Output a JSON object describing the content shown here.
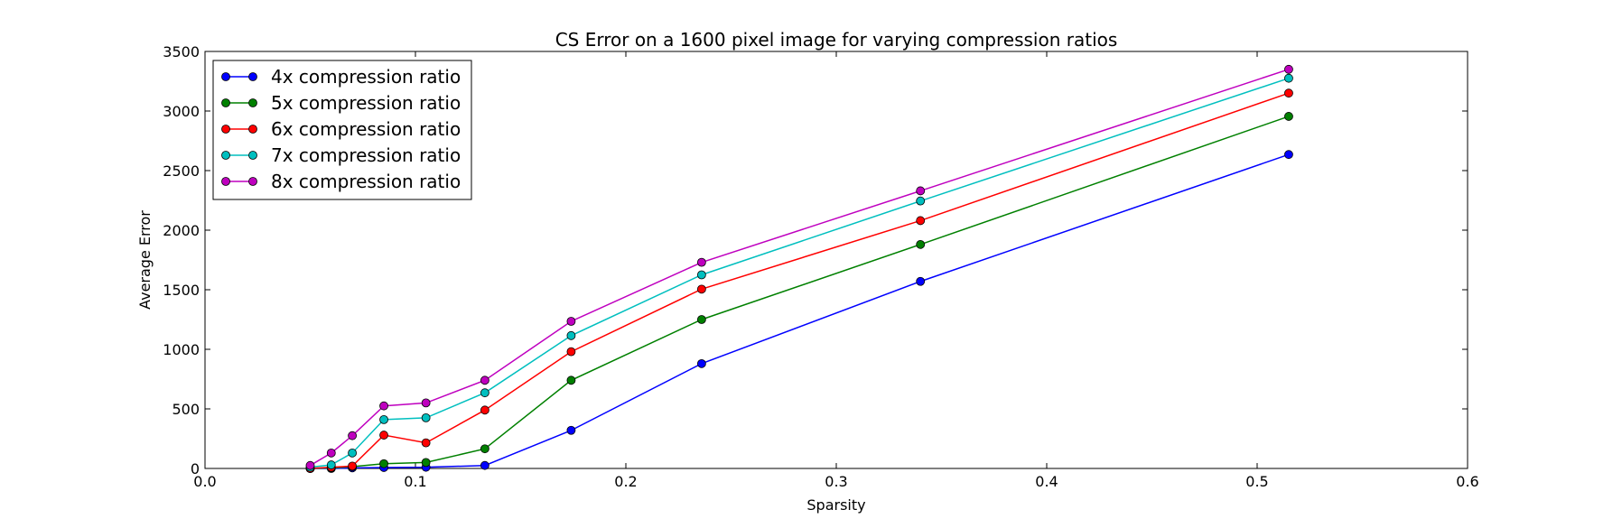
{
  "chart_data": {
    "type": "line",
    "title": "CS Error on a 1600 pixel image for varying compression ratios",
    "xlabel": "Sparsity",
    "ylabel": "Average Error",
    "xlim": [
      0.0,
      0.6
    ],
    "ylim": [
      0,
      3500
    ],
    "xticks": [
      "0.0",
      "0.1",
      "0.2",
      "0.3",
      "0.4",
      "0.5",
      "0.6"
    ],
    "yticks": [
      "0",
      "500",
      "1000",
      "1500",
      "2000",
      "2500",
      "3000",
      "3500"
    ],
    "grid": false,
    "legend_position": "top-left",
    "x": [
      0.05,
      0.06,
      0.07,
      0.085,
      0.105,
      0.133,
      0.174,
      0.236,
      0.34,
      0.515
    ],
    "series": [
      {
        "name": "4x compression ratio",
        "color": "#0000ff",
        "values": [
          0,
          0,
          5,
          8,
          10,
          25,
          320,
          880,
          1570,
          2635
        ]
      },
      {
        "name": "5x compression ratio",
        "color": "#008000",
        "values": [
          0,
          5,
          15,
          40,
          50,
          165,
          740,
          1250,
          1880,
          2955
        ]
      },
      {
        "name": "6x compression ratio",
        "color": "#ff0000",
        "values": [
          0,
          10,
          20,
          280,
          215,
          490,
          980,
          1505,
          2080,
          3150
        ]
      },
      {
        "name": "7x compression ratio",
        "color": "#00bfbf",
        "values": [
          10,
          30,
          130,
          410,
          425,
          635,
          1115,
          1625,
          2245,
          3275
        ]
      },
      {
        "name": "8x compression ratio",
        "color": "#bf00bf",
        "values": [
          25,
          130,
          275,
          525,
          550,
          740,
          1235,
          1730,
          2330,
          3350
        ]
      }
    ]
  }
}
